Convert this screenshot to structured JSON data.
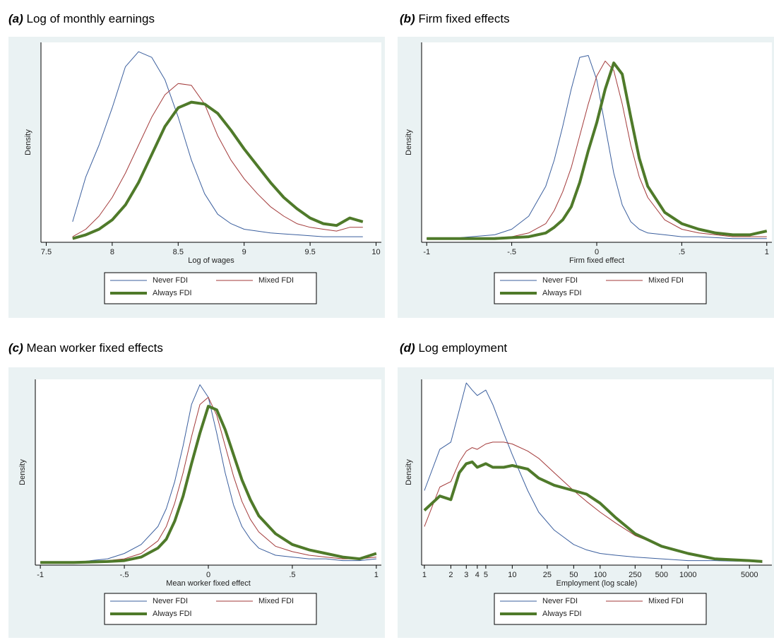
{
  "chart_data": [
    {
      "type": "line",
      "panel_label": "(a)",
      "title": "Log of monthly earnings",
      "xlabel": "Log of wages",
      "ylabel": "Density",
      "x": [
        7.7,
        7.8,
        7.9,
        8.0,
        8.1,
        8.2,
        8.3,
        8.4,
        8.5,
        8.6,
        8.7,
        8.8,
        8.9,
        9.0,
        9.1,
        9.2,
        9.3,
        9.4,
        9.5,
        9.6,
        9.7,
        9.8,
        9.9
      ],
      "series": [
        {
          "name": "Never FDI",
          "color": "#3b5f9e",
          "line_width": 1,
          "values": [
            0.09,
            0.33,
            0.5,
            0.7,
            0.92,
            1.0,
            0.97,
            0.85,
            0.65,
            0.42,
            0.24,
            0.13,
            0.08,
            0.05,
            0.04,
            0.03,
            0.025,
            0.02,
            0.015,
            0.01,
            0.01,
            0.01,
            0.01
          ]
        },
        {
          "name": "Mixed FDI",
          "color": "#a33a3a",
          "line_width": 1,
          "values": [
            0.01,
            0.05,
            0.12,
            0.22,
            0.35,
            0.5,
            0.65,
            0.77,
            0.83,
            0.82,
            0.72,
            0.55,
            0.42,
            0.32,
            0.24,
            0.17,
            0.12,
            0.08,
            0.06,
            0.05,
            0.04,
            0.06,
            0.06
          ]
        },
        {
          "name": "Always FDI",
          "color": "#4f7a2a",
          "line_width": 4,
          "values": [
            0.0,
            0.02,
            0.05,
            0.1,
            0.18,
            0.3,
            0.45,
            0.6,
            0.7,
            0.73,
            0.72,
            0.67,
            0.58,
            0.48,
            0.39,
            0.3,
            0.22,
            0.16,
            0.11,
            0.08,
            0.07,
            0.11,
            0.09
          ]
        }
      ],
      "xlim": [
        7.46,
        10.04
      ],
      "xticks": [
        7.5,
        8,
        8.5,
        9,
        9.5,
        10
      ],
      "ylim": [
        -0.02,
        1.05
      ]
    },
    {
      "type": "line",
      "panel_label": "(b)",
      "title": "Firm fixed effects",
      "xlabel": "Firm fixed effect",
      "ylabel": "Density",
      "x": [
        -1,
        -0.8,
        -0.6,
        -0.5,
        -0.4,
        -0.3,
        -0.25,
        -0.2,
        -0.15,
        -0.1,
        -0.05,
        0,
        0.05,
        0.1,
        0.15,
        0.2,
        0.25,
        0.3,
        0.4,
        0.5,
        0.6,
        0.7,
        0.8,
        0.9,
        1
      ],
      "series": [
        {
          "name": "Never FDI",
          "color": "#3b5f9e",
          "line_width": 1,
          "values": [
            0,
            0.005,
            0.02,
            0.05,
            0.12,
            0.28,
            0.42,
            0.6,
            0.8,
            0.97,
            0.98,
            0.85,
            0.6,
            0.35,
            0.18,
            0.09,
            0.05,
            0.03,
            0.02,
            0.01,
            0.01,
            0.005,
            0,
            0,
            0
          ]
        },
        {
          "name": "Mixed FDI",
          "color": "#a33a3a",
          "line_width": 1,
          "values": [
            0,
            0,
            0.005,
            0.01,
            0.03,
            0.08,
            0.15,
            0.25,
            0.38,
            0.55,
            0.72,
            0.87,
            0.95,
            0.9,
            0.72,
            0.5,
            0.33,
            0.22,
            0.1,
            0.05,
            0.03,
            0.02,
            0.01,
            0.01,
            0.01
          ]
        },
        {
          "name": "Always FDI",
          "color": "#4f7a2a",
          "line_width": 4,
          "values": [
            0,
            0,
            0,
            0.005,
            0.01,
            0.03,
            0.06,
            0.1,
            0.17,
            0.3,
            0.47,
            0.62,
            0.8,
            0.94,
            0.88,
            0.65,
            0.43,
            0.28,
            0.14,
            0.08,
            0.05,
            0.03,
            0.02,
            0.02,
            0.04
          ]
        }
      ],
      "xlim": [
        -1.03,
        1.03
      ],
      "xticks": [
        -1,
        {
          "value": -0.5,
          "label": "-.5"
        },
        0,
        {
          "value": 0.5,
          "label": ".5"
        },
        1
      ],
      "ylim": [
        -0.02,
        1.05
      ]
    },
    {
      "type": "line",
      "panel_label": "(c)",
      "title": "Mean worker fixed effects",
      "xlabel": "Mean worker fixed effect",
      "ylabel": "Density",
      "x": [
        -1,
        -0.8,
        -0.6,
        -0.5,
        -0.4,
        -0.3,
        -0.25,
        -0.2,
        -0.15,
        -0.1,
        -0.05,
        0,
        0.05,
        0.1,
        0.15,
        0.2,
        0.25,
        0.3,
        0.4,
        0.5,
        0.6,
        0.7,
        0.8,
        0.9,
        1
      ],
      "series": [
        {
          "name": "Never FDI",
          "color": "#3b5f9e",
          "line_width": 1,
          "values": [
            0,
            0,
            0.02,
            0.05,
            0.1,
            0.2,
            0.3,
            0.45,
            0.65,
            0.88,
            0.99,
            0.92,
            0.72,
            0.5,
            0.32,
            0.2,
            0.13,
            0.08,
            0.04,
            0.03,
            0.02,
            0.02,
            0.01,
            0.01,
            0.02
          ]
        },
        {
          "name": "Mixed FDI",
          "color": "#a33a3a",
          "line_width": 1,
          "values": [
            0,
            0,
            0.01,
            0.02,
            0.05,
            0.12,
            0.2,
            0.33,
            0.5,
            0.7,
            0.88,
            0.92,
            0.82,
            0.65,
            0.48,
            0.34,
            0.24,
            0.17,
            0.09,
            0.06,
            0.04,
            0.03,
            0.02,
            0.02,
            0.03
          ]
        },
        {
          "name": "Always FDI",
          "color": "#4f7a2a",
          "line_width": 4,
          "values": [
            0,
            0,
            0.005,
            0.01,
            0.03,
            0.08,
            0.13,
            0.23,
            0.37,
            0.55,
            0.72,
            0.87,
            0.85,
            0.74,
            0.6,
            0.46,
            0.35,
            0.26,
            0.16,
            0.1,
            0.07,
            0.05,
            0.03,
            0.02,
            0.05
          ]
        }
      ],
      "xlim": [
        -1.03,
        1.03
      ],
      "xticks": [
        -1,
        {
          "value": -0.5,
          "label": "-.5"
        },
        0,
        {
          "value": 0.5,
          "label": ".5"
        },
        1
      ],
      "ylim": [
        -0.015,
        1.02
      ]
    },
    {
      "type": "line",
      "panel_label": "(d)",
      "title": "Log employment",
      "xlabel": "Employment (log scale)",
      "ylabel": "Density",
      "xscale": "log",
      "x": [
        1,
        1.5,
        2,
        2.5,
        3,
        3.5,
        4,
        5,
        6,
        8,
        10,
        15,
        20,
        30,
        50,
        70,
        100,
        150,
        250,
        500,
        1000,
        2000,
        5000,
        7000
      ],
      "series": [
        {
          "name": "Never FDI",
          "color": "#3b5f9e",
          "line_width": 1,
          "values": [
            0.4,
            0.63,
            0.67,
            0.85,
            1.0,
            0.96,
            0.93,
            0.96,
            0.88,
            0.72,
            0.6,
            0.4,
            0.28,
            0.18,
            0.1,
            0.07,
            0.05,
            0.04,
            0.03,
            0.02,
            0.01,
            0.01,
            0.005,
            0
          ]
        },
        {
          "name": "Mixed FDI",
          "color": "#a33a3a",
          "line_width": 1,
          "values": [
            0.2,
            0.42,
            0.45,
            0.56,
            0.62,
            0.64,
            0.63,
            0.66,
            0.67,
            0.67,
            0.66,
            0.62,
            0.58,
            0.5,
            0.4,
            0.34,
            0.28,
            0.22,
            0.15,
            0.09,
            0.05,
            0.02,
            0.01,
            0.005
          ]
        },
        {
          "name": "Always FDI",
          "color": "#4f7a2a",
          "line_width": 4,
          "values": [
            0.29,
            0.37,
            0.35,
            0.5,
            0.55,
            0.56,
            0.53,
            0.55,
            0.53,
            0.53,
            0.54,
            0.52,
            0.47,
            0.43,
            0.4,
            0.38,
            0.33,
            0.25,
            0.16,
            0.09,
            0.05,
            0.02,
            0.01,
            0.005
          ]
        }
      ],
      "xlim": [
        0.93,
        9000
      ],
      "xticks": [
        1,
        2,
        3,
        4,
        5,
        10,
        25,
        50,
        100,
        250,
        500,
        1000,
        5000
      ],
      "ylim": [
        -0.015,
        1.02
      ]
    }
  ]
}
